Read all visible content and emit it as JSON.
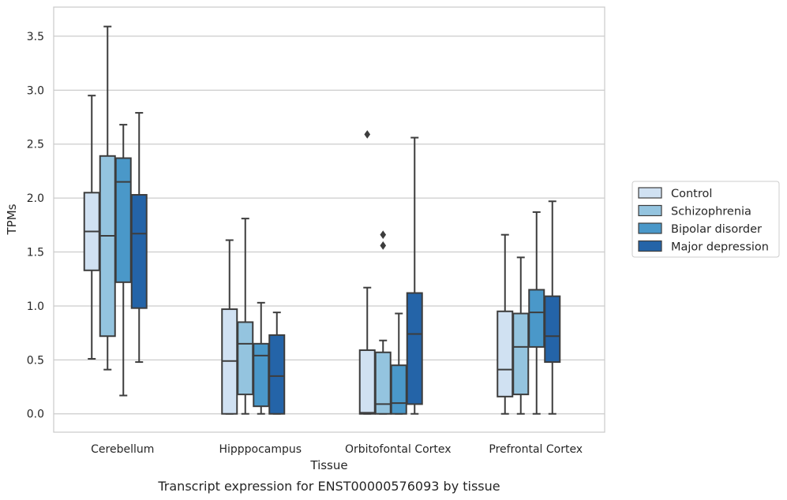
{
  "caption": "Transcript expression for ENST00000576093 by tissue",
  "chart_data": {
    "type": "boxplot",
    "xlabel": "Tissue",
    "ylabel": "TPMs",
    "ylim": [
      -0.17,
      3.77
    ],
    "yticks": [
      "0.0",
      "0.5",
      "1.0",
      "1.5",
      "2.0",
      "2.5",
      "3.0",
      "3.5"
    ],
    "grid": true,
    "legend_position": "right",
    "categories": [
      "Cerebellum",
      "Hipppocampus",
      "Orbitofontal Cortex",
      "Prefrontal Cortex"
    ],
    "series": [
      {
        "name": "Control",
        "color": "#d0e1f2",
        "boxes": [
          {
            "whislo": 0.51,
            "q1": 1.33,
            "med": 1.69,
            "q3": 2.05,
            "whishi": 2.95,
            "fliers": []
          },
          {
            "whislo": 0.0,
            "q1": 0.0,
            "med": 0.49,
            "q3": 0.97,
            "whishi": 1.61,
            "fliers": []
          },
          {
            "whislo": 0.0,
            "q1": 0.0,
            "med": 0.01,
            "q3": 0.59,
            "whishi": 1.17,
            "fliers": [
              2.59
            ]
          },
          {
            "whislo": 0.0,
            "q1": 0.16,
            "med": 0.41,
            "q3": 0.95,
            "whishi": 1.66,
            "fliers": []
          }
        ]
      },
      {
        "name": "Schizophrenia",
        "color": "#94c4df",
        "boxes": [
          {
            "whislo": 0.41,
            "q1": 0.72,
            "med": 1.65,
            "q3": 2.39,
            "whishi": 3.59,
            "fliers": []
          },
          {
            "whislo": 0.0,
            "q1": 0.18,
            "med": 0.65,
            "q3": 0.85,
            "whishi": 1.81,
            "fliers": []
          },
          {
            "whislo": 0.0,
            "q1": 0.0,
            "med": 0.09,
            "q3": 0.57,
            "whishi": 0.68,
            "fliers": [
              1.66,
              1.56
            ]
          },
          {
            "whislo": 0.0,
            "q1": 0.18,
            "med": 0.62,
            "q3": 0.93,
            "whishi": 1.45,
            "fliers": []
          }
        ]
      },
      {
        "name": "Bipolar disorder",
        "color": "#4a98c9",
        "boxes": [
          {
            "whislo": 0.17,
            "q1": 1.22,
            "med": 2.15,
            "q3": 2.37,
            "whishi": 2.68,
            "fliers": []
          },
          {
            "whislo": 0.0,
            "q1": 0.07,
            "med": 0.54,
            "q3": 0.65,
            "whishi": 1.03,
            "fliers": []
          },
          {
            "whislo": 0.0,
            "q1": 0.0,
            "med": 0.1,
            "q3": 0.45,
            "whishi": 0.93,
            "fliers": []
          },
          {
            "whislo": 0.0,
            "q1": 0.62,
            "med": 0.94,
            "q3": 1.15,
            "whishi": 1.87,
            "fliers": []
          }
        ]
      },
      {
        "name": "Major depression",
        "color": "#2464a8",
        "boxes": [
          {
            "whislo": 0.48,
            "q1": 0.98,
            "med": 1.67,
            "q3": 2.03,
            "whishi": 2.79,
            "fliers": []
          },
          {
            "whislo": 0.0,
            "q1": 0.0,
            "med": 0.35,
            "q3": 0.73,
            "whishi": 0.94,
            "fliers": []
          },
          {
            "whislo": 0.0,
            "q1": 0.09,
            "med": 0.74,
            "q3": 1.12,
            "whishi": 2.56,
            "fliers": []
          },
          {
            "whislo": 0.0,
            "q1": 0.48,
            "med": 0.72,
            "q3": 1.09,
            "whishi": 1.97,
            "fliers": []
          }
        ]
      }
    ]
  }
}
